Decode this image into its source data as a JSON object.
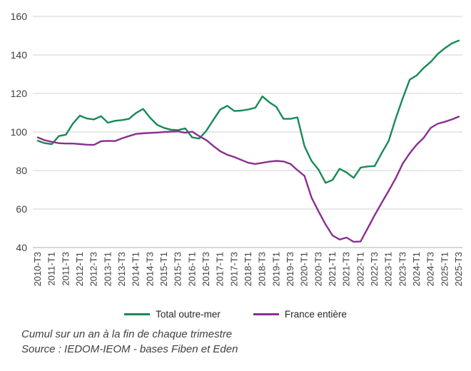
{
  "chart_data": {
    "type": "line",
    "title": "",
    "xlabel": "",
    "ylabel": "",
    "ylim": [
      40,
      160
    ],
    "y_ticks": [
      40,
      60,
      80,
      100,
      120,
      140,
      160
    ],
    "grid": "horizontal",
    "legend_position": "bottom",
    "x_tick_labels": [
      "2010-T3",
      "2011-T1",
      "2011-T3",
      "2012-T1",
      "2012-T3",
      "2013-T1",
      "2013-T3",
      "2014-T1",
      "2014-T3",
      "2015-T1",
      "2015-T3",
      "2016-T1",
      "2016-T3",
      "2017-T1",
      "2017-T3",
      "2018-T1",
      "2018-T3",
      "2019-T1",
      "2019-T3",
      "2020-T1",
      "2020-T3",
      "2021-T1",
      "2021-T3",
      "2022-T1",
      "2022-T3",
      "2023-T1",
      "2023-T3",
      "2024-T1",
      "2024-T3",
      "2025-T1",
      "2025-T3"
    ],
    "points_per_tick": 2,
    "series": [
      {
        "name": "Total outre-mer",
        "color": "#178a55",
        "values": [
          95.5,
          94.2,
          93.7,
          97.9,
          98.6,
          104.4,
          108.5,
          107.0,
          106.5,
          108.2,
          104.8,
          105.8,
          106.2,
          106.8,
          109.9,
          112.0,
          107.4,
          103.7,
          102.1,
          101.2,
          101.0,
          101.9,
          97.2,
          96.6,
          100.6,
          106.2,
          111.7,
          113.6,
          110.9,
          111.1,
          111.7,
          112.6,
          118.5,
          115.4,
          113.0,
          106.8,
          106.8,
          107.6,
          92.6,
          85.0,
          80.5,
          73.6,
          75.1,
          80.9,
          79.0,
          76.2,
          81.5,
          82.1,
          82.3,
          89.0,
          95.4,
          107.0,
          117.5,
          127.2,
          129.4,
          133.3,
          136.4,
          140.5,
          143.5,
          146.0,
          147.5
        ]
      },
      {
        "name": "France entière",
        "color": "#8a2f8f",
        "values": [
          97.2,
          95.7,
          94.9,
          94.2,
          94.0,
          94.0,
          93.7,
          93.4,
          93.3,
          95.2,
          95.4,
          95.3,
          96.7,
          97.9,
          99.0,
          99.3,
          99.5,
          99.7,
          100.0,
          100.2,
          100.3,
          99.6,
          100.2,
          97.8,
          95.8,
          92.8,
          90.0,
          88.2,
          87.0,
          85.5,
          84.0,
          83.4,
          84.0,
          84.6,
          85.0,
          84.7,
          83.4,
          80.2,
          77.2,
          66.0,
          58.8,
          52.0,
          46.3,
          44.2,
          45.2,
          43.0,
          43.2,
          50.0,
          56.8,
          63.2,
          69.5,
          76.0,
          83.6,
          89.0,
          93.5,
          97.0,
          102.2,
          104.3,
          105.3,
          106.5,
          108.0
        ]
      }
    ],
    "tick_label_color": "#404040",
    "gridline_color": "#d9d9d9",
    "axis_line_color": "#bfbfbf"
  },
  "footer": {
    "line1": "Cumul sur un an à la fin de chaque trimestre",
    "line2": "Source : IEDOM-IEOM - bases Fiben et Eden"
  }
}
